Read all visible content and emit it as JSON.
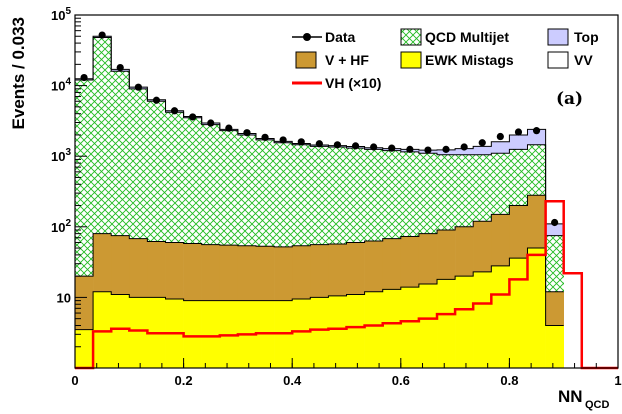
{
  "chart_data": {
    "type": "stacked-histogram",
    "ylabel": "Events / 0.033",
    "xlabel_main": "NN",
    "xlabel_sub": "QCD",
    "panel_label": "(a)",
    "xlim": [
      0,
      1
    ],
    "ylim": [
      1,
      100000
    ],
    "y_scale": "log",
    "x_ticks": [
      {
        "value": 0,
        "label": "0"
      },
      {
        "value": 0.2,
        "label": "0.2"
      },
      {
        "value": 0.4,
        "label": "0.4"
      },
      {
        "value": 0.6,
        "label": "0.6"
      },
      {
        "value": 0.8,
        "label": "0.8"
      },
      {
        "value": 1,
        "label": "1"
      }
    ],
    "y_ticks": [
      {
        "value": 10,
        "base": "10",
        "exp": ""
      },
      {
        "value": 100,
        "base": "10",
        "exp": "2"
      },
      {
        "value": 1000,
        "base": "10",
        "exp": "3"
      },
      {
        "value": 10000,
        "base": "10",
        "exp": "4"
      },
      {
        "value": 100000,
        "base": "10",
        "exp": "5"
      }
    ],
    "bin_width": 0.0333,
    "bin_edges": [
      0,
      0.0333,
      0.0667,
      0.1,
      0.1333,
      0.1667,
      0.2,
      0.2333,
      0.2667,
      0.3,
      0.3333,
      0.3667,
      0.4,
      0.4333,
      0.4667,
      0.5,
      0.5333,
      0.5667,
      0.6,
      0.6333,
      0.6667,
      0.7,
      0.7333,
      0.7667,
      0.8,
      0.8333,
      0.8667,
      0.9,
      0.9333,
      0.9667,
      1.0
    ],
    "stack_order": [
      "EWK Mistags",
      "V + HF",
      "QCD Multijet",
      "Top",
      "VV"
    ],
    "cumulative_tops": {
      "EWK Mistags": [
        3.5,
        12,
        11,
        10,
        10,
        9.5,
        9,
        9,
        9,
        9,
        9,
        9,
        9.5,
        10,
        10.5,
        11,
        12,
        13,
        14,
        15.5,
        18,
        20,
        23,
        28,
        36,
        50,
        4,
        0,
        0,
        0
      ],
      "V + HF": [
        20,
        80,
        75,
        68,
        62,
        60,
        58,
        56,
        55,
        54,
        53,
        52,
        54,
        56,
        57,
        60,
        63,
        68,
        73,
        80,
        90,
        100,
        120,
        150,
        200,
        280,
        12,
        0,
        0,
        0
      ],
      "QCD Multijet": [
        12000,
        48000,
        16000,
        9000,
        6000,
        4200,
        3500,
        2800,
        2300,
        2000,
        1700,
        1550,
        1450,
        1380,
        1350,
        1300,
        1250,
        1200,
        1150,
        1100,
        1050,
        1050,
        1050,
        1100,
        1250,
        1450,
        75,
        0,
        0,
        0
      ],
      "Top": [
        20,
        85,
        80,
        72,
        66,
        64,
        62,
        60,
        59,
        58,
        57,
        56,
        58,
        60,
        62,
        66,
        70,
        76,
        84,
        94,
        112,
        132,
        165,
        220,
        340,
        550,
        30,
        0,
        0,
        0
      ],
      "VV": [
        20,
        85,
        80,
        72,
        66,
        64,
        62,
        60,
        59,
        58,
        57,
        56,
        58,
        60,
        62,
        66,
        70,
        76,
        84,
        94,
        112,
        132,
        165,
        220,
        340,
        550,
        30,
        0,
        0,
        0
      ]
    },
    "top_band_tops": {
      "V + HF": [
        12500,
        50000,
        17000,
        9500,
        6300,
        4400,
        3650,
        2950,
        2400,
        2100,
        1780,
        1620,
        1510,
        1440,
        1410,
        1370,
        1320,
        1280,
        1250,
        1220,
        1230,
        1280,
        1380,
        1600,
        2000,
        2400,
        110,
        0,
        0,
        0
      ]
    },
    "vh_x10": [
      0,
      3.3,
      3.6,
      3.4,
      3.1,
      3.1,
      2.8,
      2.8,
      2.9,
      3.0,
      3.1,
      3.1,
      3.3,
      3.5,
      3.6,
      3.8,
      4.0,
      4.3,
      4.6,
      5.0,
      5.8,
      6.8,
      8.2,
      11,
      18,
      40,
      230,
      22,
      1,
      1
    ],
    "data": {
      "x": [
        0.0167,
        0.05,
        0.0833,
        0.1167,
        0.15,
        0.1833,
        0.2167,
        0.25,
        0.2833,
        0.3167,
        0.35,
        0.3833,
        0.4167,
        0.45,
        0.4833,
        0.5167,
        0.55,
        0.5833,
        0.6167,
        0.65,
        0.6833,
        0.7167,
        0.75,
        0.7833,
        0.8167,
        0.85,
        0.8833
      ],
      "y": [
        13000,
        52000,
        18000,
        9500,
        6200,
        4400,
        3600,
        2950,
        2500,
        2150,
        1850,
        1700,
        1600,
        1500,
        1450,
        1400,
        1350,
        1300,
        1250,
        1220,
        1250,
        1350,
        1550,
        1900,
        2200,
        2300,
        115
      ]
    },
    "colors": {
      "QCD Multijet": "#33cc33",
      "V + HF": "#cc9933",
      "EWK Mistags": "#ffff00",
      "Top": "#ccccff",
      "VV": "#ffffff",
      "VH": "#ff0000",
      "Data": "#000000"
    },
    "legend": [
      {
        "name": "Data",
        "style": "marker"
      },
      {
        "name": "QCD Multijet",
        "style": "hatch"
      },
      {
        "name": "Top",
        "style": "fill-top"
      },
      {
        "name": "V + HF",
        "style": "fill-vhf"
      },
      {
        "name": "EWK Mistags",
        "style": "fill-ewk"
      },
      {
        "name": "VV",
        "style": "fill-vv"
      },
      {
        "name": "VH (×10)",
        "style": "line"
      }
    ],
    "legend_placement": "top-right",
    "grid": false
  }
}
